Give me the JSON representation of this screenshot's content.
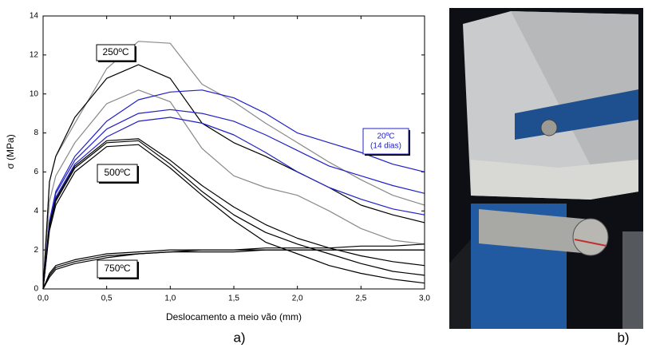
{
  "chart_data": {
    "type": "line",
    "ylabel": "σ (MPa)",
    "xlabel": "Deslocamento a meio vão (mm)",
    "xlim": [
      0,
      3
    ],
    "ylim": [
      0,
      14
    ],
    "xticks": [
      {
        "value": 0,
        "label": "0,0"
      },
      {
        "value": 0.5,
        "label": "0,5"
      },
      {
        "value": 1,
        "label": "1,0"
      },
      {
        "value": 1.5,
        "label": "1,5"
      },
      {
        "value": 2,
        "label": "2,0"
      },
      {
        "value": 2.5,
        "label": "2,5"
      },
      {
        "value": 3,
        "label": "3,0"
      }
    ],
    "yticks": [
      0,
      2,
      4,
      6,
      8,
      10,
      12,
      14
    ],
    "x": [
      0,
      0.05,
      0.1,
      0.25,
      0.5,
      0.75,
      1.0,
      1.25,
      1.5,
      1.75,
      2.0,
      2.25,
      2.5,
      2.75,
      3.0
    ],
    "series": [
      {
        "color": "#8a8a8a",
        "values": [
          0,
          5.5,
          6.8,
          8.5,
          11.3,
          12.7,
          12.6,
          10.5,
          9.6,
          8.5,
          7.5,
          6.5,
          5.6,
          4.8,
          4.3
        ]
      },
      {
        "color": "#8a8a8a",
        "values": [
          0,
          4.5,
          5.8,
          7.5,
          9.5,
          10.2,
          9.6,
          7.2,
          5.8,
          5.2,
          4.8,
          4.0,
          3.1,
          2.5,
          2.3
        ]
      },
      {
        "color": "#000000",
        "values": [
          0,
          5.5,
          6.8,
          8.8,
          10.8,
          11.5,
          10.8,
          8.5,
          7.5,
          6.8,
          6.0,
          5.2,
          4.3,
          3.8,
          3.4
        ]
      },
      {
        "color": "#2020c8",
        "values": [
          0,
          3.5,
          5.0,
          6.8,
          8.6,
          9.7,
          10.1,
          10.2,
          9.8,
          9.0,
          8.0,
          7.5,
          7.0,
          6.4,
          6.0
        ]
      },
      {
        "color": "#2020c8",
        "values": [
          0,
          3.4,
          4.9,
          6.6,
          8.2,
          9.0,
          9.2,
          9.0,
          8.6,
          7.9,
          7.1,
          6.3,
          5.8,
          5.3,
          4.9
        ]
      },
      {
        "color": "#2020c8",
        "values": [
          0,
          3.2,
          4.7,
          6.4,
          7.8,
          8.6,
          8.8,
          8.5,
          7.9,
          7.0,
          6.0,
          5.2,
          4.6,
          4.1,
          3.8
        ]
      },
      {
        "color": "#000000",
        "values": [
          0,
          3.2,
          4.5,
          6.2,
          7.5,
          7.6,
          6.4,
          5.0,
          3.8,
          2.9,
          2.3,
          1.8,
          1.3,
          0.9,
          0.7
        ]
      },
      {
        "color": "#000000",
        "values": [
          0,
          3.0,
          4.3,
          6.0,
          7.3,
          7.4,
          6.2,
          4.8,
          3.5,
          2.4,
          1.8,
          1.2,
          0.8,
          0.5,
          0.3
        ]
      },
      {
        "color": "#000000",
        "values": [
          0,
          3.3,
          4.6,
          6.3,
          7.6,
          7.7,
          6.6,
          5.3,
          4.2,
          3.3,
          2.6,
          2.1,
          1.7,
          1.4,
          1.2
        ]
      },
      {
        "color": "#000000",
        "values": [
          0,
          0.8,
          1.2,
          1.5,
          1.8,
          1.9,
          2.0,
          2.0,
          2.0,
          2.0,
          2.0,
          2.0,
          2.0,
          2.0,
          2.0
        ]
      },
      {
        "color": "#000000",
        "values": [
          0,
          0.7,
          1.1,
          1.4,
          1.7,
          1.8,
          1.9,
          2.0,
          2.0,
          2.1,
          2.1,
          2.1,
          2.2,
          2.2,
          2.3
        ]
      },
      {
        "color": "#000000",
        "values": [
          0,
          0.6,
          1.0,
          1.3,
          1.6,
          1.8,
          1.9,
          1.9,
          1.9,
          2.0,
          2.0,
          2.0,
          2.0,
          2.0,
          2.0
        ]
      }
    ],
    "annotations": [
      {
        "lines": [
          "250ºC"
        ],
        "color": "#000000"
      },
      {
        "lines": [
          "500ºC"
        ],
        "color": "#000000"
      },
      {
        "lines": [
          "750ºC"
        ],
        "color": "#000000"
      },
      {
        "lines": [
          "20ºC",
          "(14 dias)"
        ],
        "color": "#2020c8"
      }
    ]
  },
  "panel_labels": [
    "a)",
    "b)"
  ]
}
